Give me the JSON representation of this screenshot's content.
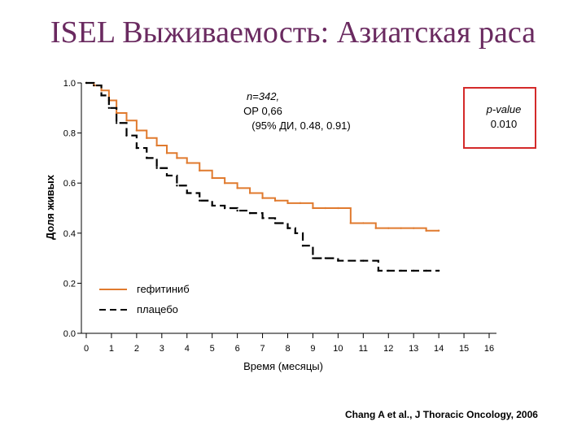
{
  "slide": {
    "title": "ISEL Выживаемость: Азиатская раса"
  },
  "chart_data": {
    "type": "line",
    "title": "ISEL Выживаемость: Азиатская раса",
    "xlabel": "Время (месяцы)",
    "ylabel": "Доля живых",
    "xlim": [
      0,
      16
    ],
    "ylim": [
      0,
      1
    ],
    "x_ticks": [
      "0",
      "1",
      "2",
      "3",
      "4",
      "5",
      "6",
      "7",
      "8",
      "9",
      "10",
      "11",
      "12",
      "13",
      "14",
      "15",
      "16"
    ],
    "y_ticks": [
      "0.0",
      "0.2",
      "0.4",
      "0.6",
      "0.8",
      "1.0"
    ],
    "series": [
      {
        "name": "гефитиниб",
        "color": "#e07a2e",
        "style": "solid",
        "x": [
          0,
          0.3,
          0.6,
          0.9,
          1.2,
          1.6,
          2.0,
          2.4,
          2.8,
          3.2,
          3.6,
          4.0,
          4.5,
          5.0,
          5.5,
          6.0,
          6.5,
          7.0,
          7.5,
          8.0,
          8.5,
          9.0,
          9.5,
          10.0,
          10.5,
          11.0,
          11.5,
          12.0,
          12.5,
          13.0,
          13.5,
          14.0
        ],
        "y": [
          1.0,
          0.99,
          0.97,
          0.93,
          0.88,
          0.85,
          0.81,
          0.78,
          0.75,
          0.72,
          0.7,
          0.68,
          0.65,
          0.62,
          0.6,
          0.58,
          0.56,
          0.54,
          0.53,
          0.52,
          0.52,
          0.5,
          0.5,
          0.5,
          0.44,
          0.44,
          0.42,
          0.42,
          0.42,
          0.42,
          0.41,
          0.41
        ]
      },
      {
        "name": "плацебо",
        "color": "#000000",
        "style": "dashed",
        "x": [
          0,
          0.3,
          0.6,
          0.9,
          1.2,
          1.6,
          2.0,
          2.4,
          2.8,
          3.2,
          3.6,
          4.0,
          4.5,
          5.0,
          5.5,
          6.0,
          6.5,
          7.0,
          7.5,
          8.0,
          8.3,
          8.6,
          9.0,
          9.5,
          10.0,
          11.0,
          11.6,
          12.0,
          12.5,
          13.0,
          13.5,
          14.0
        ],
        "y": [
          1.0,
          0.99,
          0.95,
          0.9,
          0.84,
          0.79,
          0.74,
          0.7,
          0.66,
          0.63,
          0.59,
          0.56,
          0.53,
          0.51,
          0.5,
          0.49,
          0.48,
          0.46,
          0.44,
          0.42,
          0.4,
          0.35,
          0.3,
          0.3,
          0.29,
          0.29,
          0.25,
          0.25,
          0.25,
          0.25,
          0.25,
          0.25
        ]
      }
    ],
    "annotations": {
      "stats": [
        "n=342,",
        "ОР  0,66",
        "(95% ДИ, 0.48, 0.91)"
      ],
      "pvalue": [
        "p-value",
        "0.010"
      ],
      "pvalue_box_color": "#d42a2a"
    },
    "legend": [
      "гефитиниб",
      "плацебо"
    ]
  },
  "citation": "Chang A et al., J Thoracic Oncology, 2006"
}
